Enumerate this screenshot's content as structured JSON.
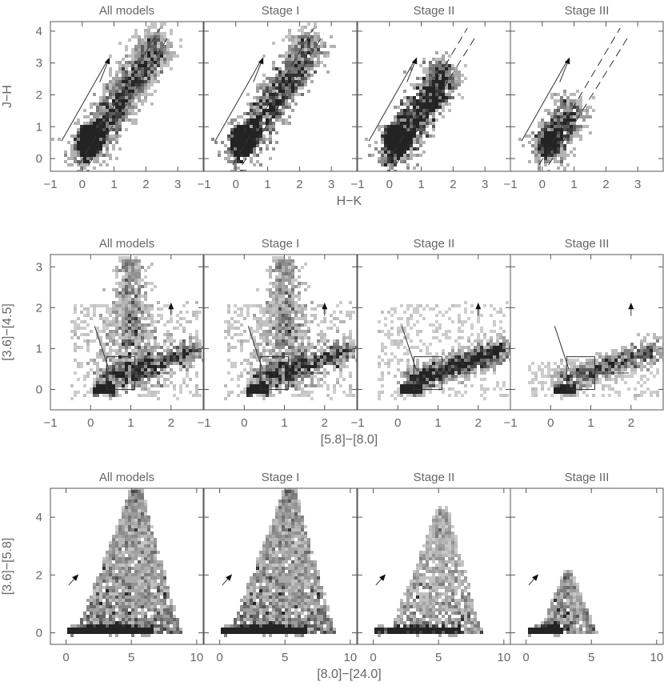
{
  "colors": {
    "frame": "#555555",
    "text": "#666666",
    "density_dark": "#2a2a2a",
    "density_light": "#d8d8d8",
    "overlay_line": "#333333"
  },
  "chart_data": [
    {
      "type": "heatmap",
      "row": "J-H vs H-K",
      "ylabel": "J−H",
      "xlabel": "H−K",
      "xlim": [
        -1,
        3.8
      ],
      "ylim": [
        -0.4,
        4.3
      ],
      "xticks": [
        -1,
        0,
        1,
        2,
        3
      ],
      "yticks": [
        0,
        1,
        2,
        3,
        4
      ],
      "panels": [
        {
          "title": "All models",
          "stage": "all"
        },
        {
          "title": "Stage I",
          "stage": "I"
        },
        {
          "title": "Stage II",
          "stage": "II"
        },
        {
          "title": "Stage III",
          "stage": "III"
        }
      ],
      "reddening_arrow": {
        "from": [
          0.55,
          2.4
        ],
        "to": [
          0.85,
          3.15
        ]
      },
      "reddening_line": {
        "from": [
          -0.65,
          0.55
        ],
        "to": [
          0.8,
          3.1
        ]
      },
      "dashed_lines": [
        {
          "from": [
            -0.1,
            -0.2
          ],
          "to": [
            2.45,
            4.1
          ]
        },
        {
          "from": [
            0.2,
            -0.2
          ],
          "to": [
            2.75,
            3.9
          ]
        }
      ]
    },
    {
      "type": "heatmap",
      "row": "[3.6]-[4.5] vs [5.8]-[8.0]",
      "ylabel": "[3.6]−[4.5]",
      "xlabel": "[5.8]−[8.0]",
      "xlim": [
        -1,
        2.8
      ],
      "ylim": [
        -0.5,
        3.3
      ],
      "xticks": [
        -1,
        0,
        1,
        2
      ],
      "yticks": [
        0,
        1,
        2,
        3
      ],
      "panels": [
        {
          "title": "All models",
          "stage": "all"
        },
        {
          "title": "Stage I",
          "stage": "I"
        },
        {
          "title": "Stage II",
          "stage": "II"
        },
        {
          "title": "Stage III",
          "stage": "III"
        }
      ],
      "reddening_arrow": {
        "from": [
          2.0,
          1.8
        ],
        "to": [
          2.0,
          2.1
        ]
      },
      "box": {
        "x": [
          0.4,
          1.1
        ],
        "y": [
          0.0,
          0.8
        ]
      },
      "slanted_line": {
        "from": [
          0.1,
          1.55
        ],
        "to": [
          0.45,
          0.5
        ]
      },
      "horizontal_line": {
        "from": [
          1.1,
          0.4
        ],
        "to": [
          1.95,
          0.4
        ]
      }
    },
    {
      "type": "heatmap",
      "row": "[3.6]-[5.8] vs [8.0]-[24.0]",
      "ylabel": "[3.6]−[5.8]",
      "xlabel": "[8.0]−[24.0]",
      "xlim": [
        -1.2,
        10.5
      ],
      "ylim": [
        -0.4,
        5.0
      ],
      "xticks": [
        0,
        5,
        10
      ],
      "yticks": [
        0,
        2,
        4
      ],
      "panels": [
        {
          "title": "All models",
          "stage": "all"
        },
        {
          "title": "Stage I",
          "stage": "I"
        },
        {
          "title": "Stage II",
          "stage": "II"
        },
        {
          "title": "Stage III",
          "stage": "III"
        }
      ],
      "reddening_arrow": {
        "from": [
          0.2,
          1.65
        ],
        "to": [
          0.9,
          2.0
        ]
      }
    }
  ]
}
